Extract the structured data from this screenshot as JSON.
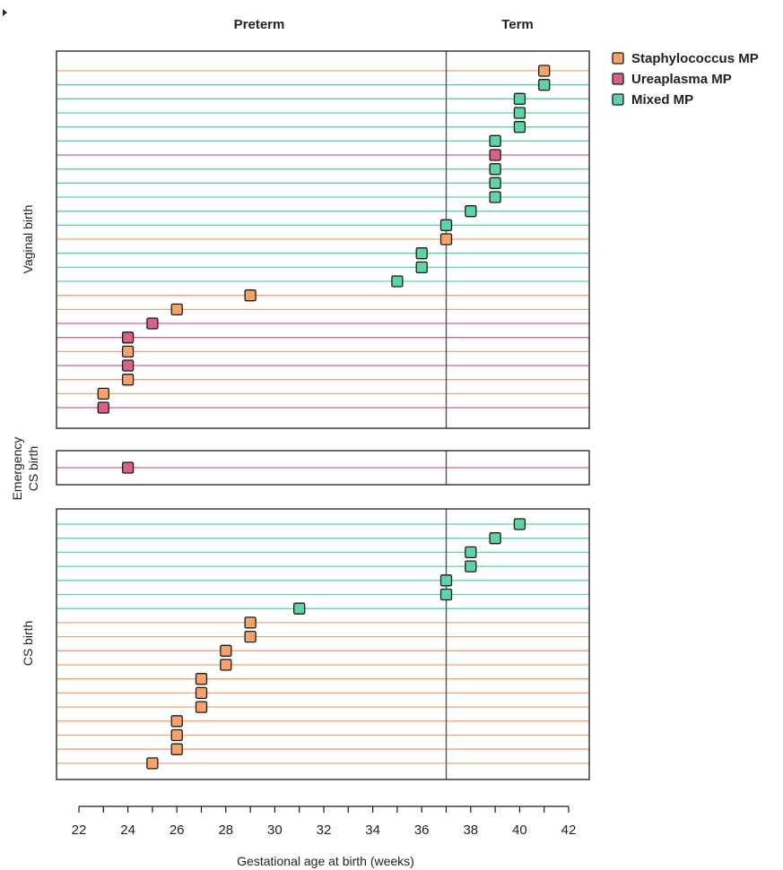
{
  "chart_data": {
    "type": "scatter",
    "xlabel": "Gestational age at birth (weeks)",
    "xlim": [
      22,
      42
    ],
    "x_ticks": [
      22,
      24,
      26,
      28,
      30,
      32,
      34,
      36,
      38,
      40,
      42
    ],
    "term_cutoff": 37,
    "column_headers": {
      "left": "Preterm",
      "right": "Term"
    },
    "legend_position": "top-right",
    "series": [
      {
        "name": "Staphylococcus MP",
        "key": "S",
        "color": "#F5A36A"
      },
      {
        "name": "Ureaplasma MP",
        "key": "U",
        "color": "#D8608C"
      },
      {
        "name": "Mixed MP",
        "key": "M",
        "color": "#5FD3A4"
      }
    ],
    "panels": [
      {
        "label": "Vaginal birth",
        "points": [
          {
            "x": 41,
            "group": "S"
          },
          {
            "x": 41,
            "group": "M"
          },
          {
            "x": 40,
            "group": "M"
          },
          {
            "x": 40,
            "group": "M"
          },
          {
            "x": 40,
            "group": "M"
          },
          {
            "x": 39,
            "group": "M"
          },
          {
            "x": 39,
            "group": "U"
          },
          {
            "x": 39,
            "group": "M"
          },
          {
            "x": 39,
            "group": "M"
          },
          {
            "x": 39,
            "group": "M"
          },
          {
            "x": 38,
            "group": "M"
          },
          {
            "x": 37,
            "group": "M"
          },
          {
            "x": 37,
            "group": "S"
          },
          {
            "x": 36,
            "group": "M"
          },
          {
            "x": 36,
            "group": "M"
          },
          {
            "x": 35,
            "group": "M"
          },
          {
            "x": 29,
            "group": "S"
          },
          {
            "x": 26,
            "group": "S"
          },
          {
            "x": 25,
            "group": "U"
          },
          {
            "x": 24,
            "group": "U"
          },
          {
            "x": 24,
            "group": "S"
          },
          {
            "x": 24,
            "group": "U"
          },
          {
            "x": 24,
            "group": "S"
          },
          {
            "x": 23,
            "group": "S"
          },
          {
            "x": 23,
            "group": "U"
          }
        ]
      },
      {
        "label": "Emergency CS birth",
        "points": [
          {
            "x": 24,
            "group": "U"
          }
        ]
      },
      {
        "label": "CS birth",
        "points": [
          {
            "x": 40,
            "group": "M"
          },
          {
            "x": 39,
            "group": "M"
          },
          {
            "x": 38,
            "group": "M"
          },
          {
            "x": 38,
            "group": "M"
          },
          {
            "x": 37,
            "group": "M"
          },
          {
            "x": 37,
            "group": "M"
          },
          {
            "x": 31,
            "group": "M"
          },
          {
            "x": 29,
            "group": "S"
          },
          {
            "x": 29,
            "group": "S"
          },
          {
            "x": 28,
            "group": "S"
          },
          {
            "x": 28,
            "group": "S"
          },
          {
            "x": 27,
            "group": "S"
          },
          {
            "x": 27,
            "group": "S"
          },
          {
            "x": 27,
            "group": "S"
          },
          {
            "x": 26,
            "group": "S"
          },
          {
            "x": 26,
            "group": "S"
          },
          {
            "x": 26,
            "group": "S"
          },
          {
            "x": 25,
            "group": "S"
          }
        ]
      }
    ]
  }
}
